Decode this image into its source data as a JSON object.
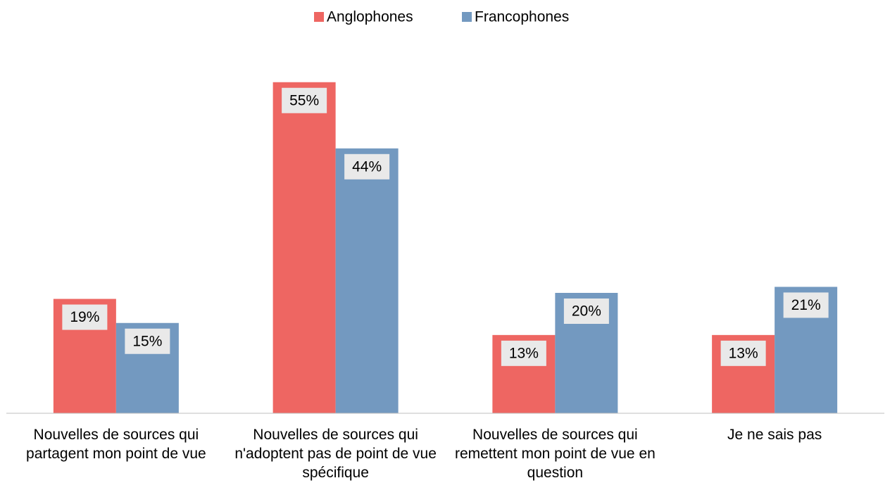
{
  "chart_data": {
    "type": "bar",
    "categories": [
      "Nouvelles de sources qui partagent mon point de vue",
      "Nouvelles de sources qui n'adoptent pas de point de vue spécifique",
      "Nouvelles de sources qui remettent mon point de vue en question",
      "Je ne sais pas"
    ],
    "series": [
      {
        "name": "Anglophones",
        "color": "#ee6662",
        "values": [
          19,
          55,
          13,
          13
        ],
        "value_labels": [
          "19%",
          "55%",
          "13%",
          "13%"
        ]
      },
      {
        "name": "Francophones",
        "color": "#7399c0",
        "values": [
          15,
          44,
          20,
          21
        ],
        "value_labels": [
          "15%",
          "44%",
          "20%",
          "21%"
        ]
      }
    ],
    "ylim": [
      0,
      60
    ],
    "legend": "top"
  }
}
